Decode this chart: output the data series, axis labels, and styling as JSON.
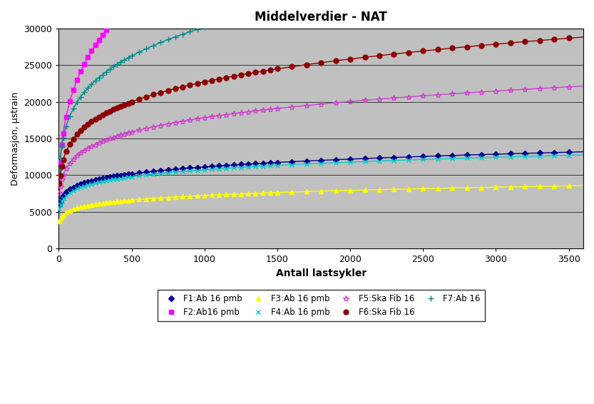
{
  "title": "Middelverdier - NAT",
  "xlabel": "Antall lastsykler",
  "ylabel": "Deformasjon, μstrain",
  "xlim": [
    0,
    3600
  ],
  "ylim": [
    0,
    30000
  ],
  "xticks": [
    0,
    500,
    1000,
    1500,
    2000,
    2500,
    3000,
    3500
  ],
  "yticks": [
    0,
    5000,
    10000,
    15000,
    20000,
    25000,
    30000
  ],
  "background_color": "#c0c0c0",
  "series": [
    {
      "label": "F1:Ab 16 pmb",
      "color": "#00008b",
      "marker": "D",
      "markersize": 4,
      "a": 3200,
      "b": 0.155,
      "c": 1800
    },
    {
      "label": "F2:Ab16 pmb",
      "color": "#ff00ff",
      "marker": "s",
      "markersize": 5,
      "a": 5800,
      "b": 0.28,
      "c": 1200
    },
    {
      "label": "F3:Ab 16 pmb",
      "color": "#ffff00",
      "marker": "^",
      "markersize": 5,
      "a": 2500,
      "b": 0.145,
      "c": 800
    },
    {
      "label": "F4:Ab 16 pmb",
      "color": "#00cccc",
      "marker": "x",
      "markersize": 5,
      "a": 3600,
      "b": 0.145,
      "c": 1200
    },
    {
      "label": "F5:Ska Fib 16",
      "color": "#cc44cc",
      "marker": "*",
      "markersize": 6,
      "a": 4800,
      "b": 0.175,
      "c": 1500
    },
    {
      "label": "F6:Ska Fib 16",
      "color": "#8b0000",
      "marker": "o",
      "markersize": 5,
      "a": 5800,
      "b": 0.19,
      "c": 1500
    },
    {
      "label": "F7:Ab 16",
      "color": "#008b8b",
      "marker": "+",
      "markersize": 6,
      "a": 6800,
      "b": 0.205,
      "c": 1500
    }
  ]
}
